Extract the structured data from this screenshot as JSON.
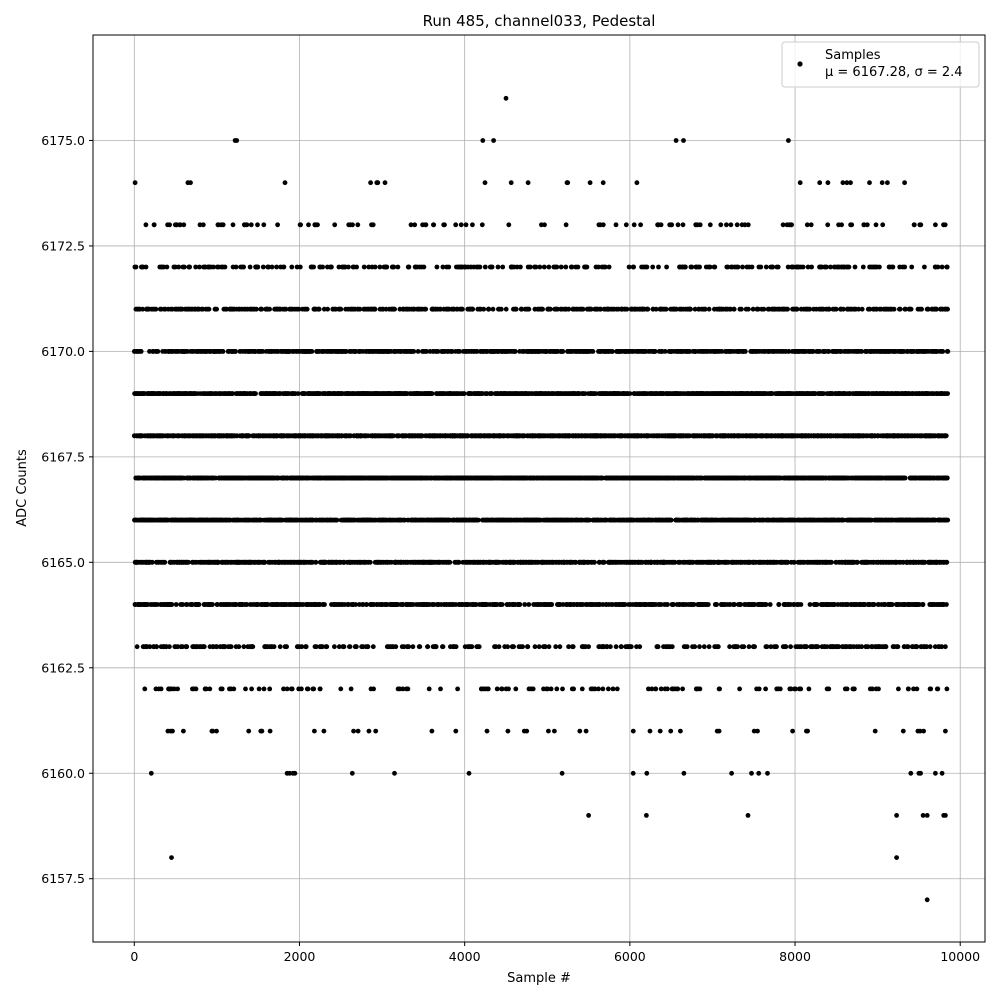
{
  "chart_data": {
    "type": "scatter",
    "title": "Run 485, channel033, Pedestal",
    "xlabel": "Sample #",
    "ylabel": "ADC Counts",
    "xlim": [
      -500,
      10300
    ],
    "ylim": [
      6156,
      6177.5
    ],
    "xticks": [
      0,
      2000,
      4000,
      6000,
      8000,
      10000
    ],
    "xtick_labels": [
      "0",
      "2000",
      "4000",
      "6000",
      "8000",
      "10000"
    ],
    "yticks": [
      6157.5,
      6160.0,
      6162.5,
      6165.0,
      6167.5,
      6170.0,
      6172.5,
      6175.0
    ],
    "ytick_labels": [
      "6157.5",
      "6160.0",
      "6162.5",
      "6165.0",
      "6167.5",
      "6170.0",
      "6172.5",
      "6175.0"
    ],
    "grid": true,
    "legend_position": "top-right",
    "series": [
      {
        "name": "Samples",
        "legend_stats": "μ = 6167.28, σ = 2.4",
        "color": "#000000",
        "marker": "circle",
        "n_samples": 9850,
        "mean": 6167.28,
        "sigma": 2.4,
        "seed": 485,
        "outliers": [
          {
            "x": 450,
            "y": 6158
          },
          {
            "x": 9230,
            "y": 6158
          },
          {
            "x": 9600,
            "y": 6157
          },
          {
            "x": 5500,
            "y": 6159
          },
          {
            "x": 6200,
            "y": 6159
          },
          {
            "x": 7430,
            "y": 6159
          },
          {
            "x": 9230,
            "y": 6159
          },
          {
            "x": 9550,
            "y": 6159
          },
          {
            "x": 9600,
            "y": 6159
          },
          {
            "x": 9800,
            "y": 6159
          },
          {
            "x": 9820,
            "y": 6159
          },
          {
            "x": 1850,
            "y": 6160
          },
          {
            "x": 1880,
            "y": 6160
          },
          {
            "x": 1920,
            "y": 6160
          },
          {
            "x": 2640,
            "y": 6160
          },
          {
            "x": 3150,
            "y": 6160
          },
          {
            "x": 5180,
            "y": 6160
          },
          {
            "x": 6040,
            "y": 6160
          },
          {
            "x": 7560,
            "y": 6160
          },
          {
            "x": 9500,
            "y": 6160
          },
          {
            "x": 9520,
            "y": 6160
          },
          {
            "x": 9700,
            "y": 6160
          },
          {
            "x": 9780,
            "y": 6160
          },
          {
            "x": 1220,
            "y": 6175
          },
          {
            "x": 1240,
            "y": 6175
          },
          {
            "x": 4220,
            "y": 6175
          },
          {
            "x": 4350,
            "y": 6175
          },
          {
            "x": 6560,
            "y": 6175
          },
          {
            "x": 6650,
            "y": 6175
          },
          {
            "x": 7920,
            "y": 6175
          },
          {
            "x": 4500,
            "y": 6176
          }
        ]
      }
    ]
  }
}
